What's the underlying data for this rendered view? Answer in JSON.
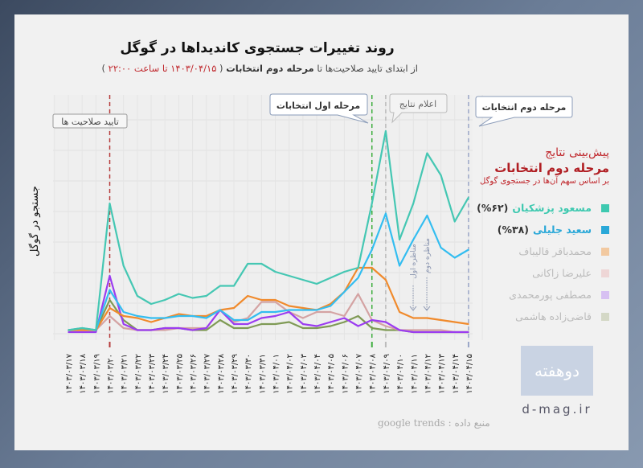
{
  "header": {
    "title": "روند تغییرات جستجوی کاندیداها در گوگل",
    "subtitle_prefix": "از ابتدای تایید صلاحیت‌ها تا",
    "subtitle_bold": "مرحله دوم انتخابات",
    "subtitle_paren_open": "(",
    "subtitle_red": "۱۴۰۳/۰۴/۱۵ تا ساعت ۲۲:۰۰",
    "subtitle_paren_close": ")"
  },
  "legend": {
    "heading1": "پیش‌بینی نتایج",
    "heading2": "مرحله دوم انتخابات",
    "note": "بر اساس سهم آن‌ها در جستجوی گوگل",
    "items": [
      {
        "name": "مسعود پزشکیان",
        "share": "(%۶۲)",
        "color": "#3ec9b0",
        "active": true
      },
      {
        "name": "سعید جلیلی",
        "share": "(%۳۸)",
        "color": "#2aa8d8",
        "active": true
      },
      {
        "name": "محمدباقر قالیباف",
        "share": "",
        "color": "#f2c9a0",
        "active": false
      },
      {
        "name": "علیرضا زاکانی",
        "share": "",
        "color": "#eed6d6",
        "active": false
      },
      {
        "name": "مصطفی پورمحمدی",
        "share": "",
        "color": "#d7c0f2",
        "active": false
      },
      {
        "name": "قاضی‌زاده هاشمی",
        "share": "",
        "color": "#d4d8c6",
        "active": false
      }
    ]
  },
  "annotations": {
    "approval": "تایید صلاحیت ها",
    "round1": "مرحله اول انتخابات",
    "results": "اعلام نتایج",
    "round2": "مرحله دوم انتخابات",
    "debate1": "مناظره اول",
    "debate2": "مناظره دوم"
  },
  "footer": {
    "source": "منبع داده : google trends",
    "site": "d-mag.ir",
    "logo_text": "دوهفته"
  },
  "chart_data": {
    "type": "line",
    "title": "روند تغییرات جستجوی کاندیداها در گوگل",
    "xlabel": "",
    "ylabel": "جستجو در گوگل",
    "ylim": [
      0,
      100
    ],
    "grid": true,
    "legend_position": "right",
    "categories": [
      "۱۴۰۳/۰۳/۱۷",
      "۱۴۰۳/۰۳/۱۸",
      "۱۴۰۳/۰۳/۱۹",
      "۱۴۰۳/۰۳/۲۰",
      "۱۴۰۳/۰۳/۲۱",
      "۱۴۰۳/۰۳/۲۲",
      "۱۴۰۳/۰۳/۲۳",
      "۱۴۰۳/۰۳/۲۴",
      "۱۴۰۳/۰۳/۲۵",
      "۱۴۰۳/۰۳/۲۶",
      "۱۴۰۳/۰۳/۲۷",
      "۱۴۰۳/۰۳/۲۸",
      "۱۴۰۳/۰۳/۲۹",
      "۱۴۰۳/۰۳/۳۰",
      "۱۴۰۳/۰۳/۳۱",
      "۱۴۰۳/۰۴/۰۱",
      "۱۴۰۳/۰۴/۰۲",
      "۱۴۰۳/۰۴/۰۳",
      "۱۴۰۳/۰۴/۰۴",
      "۱۴۰۳/۰۴/۰۵",
      "۱۴۰۳/۰۴/۰۶",
      "۱۴۰۳/۰۴/۰۷",
      "۱۴۰۳/۰۴/۰۸",
      "۱۴۰۳/۰۴/۰۹",
      "۱۴۰۳/۰۴/۱۰",
      "۱۴۰۳/۰۴/۱۱",
      "۱۴۰۳/۰۴/۱۲",
      "۱۴۰۳/۰۴/۱۳",
      "۱۴۰۳/۰۴/۱۴",
      "۱۴۰۳/۰۴/۱۵"
    ],
    "series": [
      {
        "name": "قاضی‌زاده هاشمی",
        "color": "#7f9a55",
        "values": [
          1,
          1,
          1,
          16,
          6,
          1,
          1,
          2,
          2,
          1,
          1,
          6,
          2,
          2,
          4,
          4,
          5,
          2,
          2,
          3,
          5,
          8,
          2,
          1,
          1,
          0,
          0,
          0,
          0,
          0
        ]
      },
      {
        "name": "علیرضا زاکانی",
        "color": "#d4a3a3",
        "values": [
          1,
          1,
          1,
          8,
          2,
          1,
          1,
          1,
          2,
          2,
          2,
          11,
          5,
          7,
          15,
          15,
          10,
          7,
          10,
          10,
          8,
          19,
          6,
          3,
          1,
          1,
          1,
          1,
          0,
          0
        ]
      },
      {
        "name": "مصطفی پورمحمدی",
        "color": "#9b3cf0",
        "values": [
          0,
          0,
          0,
          28,
          4,
          1,
          1,
          2,
          2,
          1,
          2,
          11,
          4,
          4,
          7,
          8,
          10,
          4,
          3,
          5,
          7,
          3,
          6,
          5,
          1,
          0,
          0,
          0,
          0,
          0
        ]
      },
      {
        "name": "محمدباقر قالیباف",
        "color": "#f08a2c",
        "values": [
          1,
          1,
          1,
          12,
          8,
          7,
          5,
          7,
          9,
          8,
          8,
          11,
          12,
          18,
          16,
          16,
          13,
          12,
          11,
          14,
          20,
          32,
          32,
          26,
          10,
          7,
          7,
          6,
          5,
          4
        ]
      },
      {
        "name": "سعید جلیلی",
        "color": "#33bdf0",
        "values": [
          1,
          2,
          1,
          21,
          10,
          8,
          7,
          7,
          8,
          8,
          7,
          11,
          6,
          6,
          10,
          10,
          11,
          11,
          11,
          13,
          20,
          27,
          41,
          59,
          33,
          46,
          58,
          42,
          37,
          41
        ]
      },
      {
        "name": "مسعود پزشکیان",
        "color": "#45c7b3",
        "values": [
          1,
          2,
          1,
          64,
          33,
          18,
          14,
          16,
          19,
          17,
          18,
          23,
          23,
          34,
          34,
          30,
          28,
          26,
          24,
          27,
          30,
          32,
          64,
          100,
          46,
          64,
          89,
          78,
          55,
          67
        ]
      }
    ],
    "vertical_markers": [
      {
        "category": "۱۴۰۳/۰۳/۲۰",
        "label": "تایید صلاحیت ها",
        "color": "#b53a3a"
      },
      {
        "category": "۱۴۰۳/۰۴/۰۸",
        "label": "مرحله اول انتخابات",
        "color": "#3fae3f"
      },
      {
        "category": "۱۴۰۳/۰۴/۰۹",
        "label": "اعلام نتایج",
        "color": "#bbbbbb"
      },
      {
        "category": "۱۴۰۳/۰۴/۱۵",
        "label": "مرحله دوم انتخابات",
        "color": "#9aa6c8"
      }
    ]
  }
}
